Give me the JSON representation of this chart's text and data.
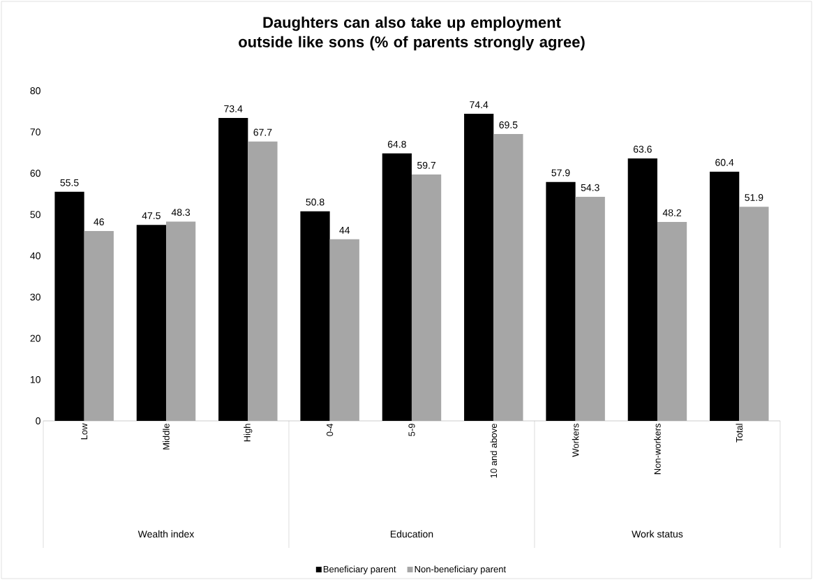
{
  "chart_data": {
    "type": "bar",
    "title": "Daughters can also take up employment outside like sons (% of parents strongly agree)",
    "categories": [
      "Low",
      "Middle",
      "High",
      "0-4",
      "5-9",
      "10 and above",
      "Workers",
      "Non-workers",
      "Total"
    ],
    "series": [
      {
        "name": "Beneficiary parent",
        "color": "#000000",
        "values": [
          55.5,
          47.5,
          73.4,
          50.8,
          64.8,
          74.4,
          57.9,
          63.6,
          60.4
        ]
      },
      {
        "name": "Non-beneficiary parent",
        "color": "#a6a6a6",
        "values": [
          46,
          48.3,
          67.7,
          44,
          59.7,
          69.5,
          54.3,
          48.2,
          51.9
        ]
      }
    ],
    "annotations": [
      "Wealth index",
      "Education",
      "Work status"
    ],
    "ylim": [
      0,
      80
    ],
    "yticks": [
      0,
      10,
      20,
      30,
      40,
      50,
      60,
      70,
      80
    ],
    "data_labels": true,
    "grid": false,
    "legend": "bottom"
  }
}
